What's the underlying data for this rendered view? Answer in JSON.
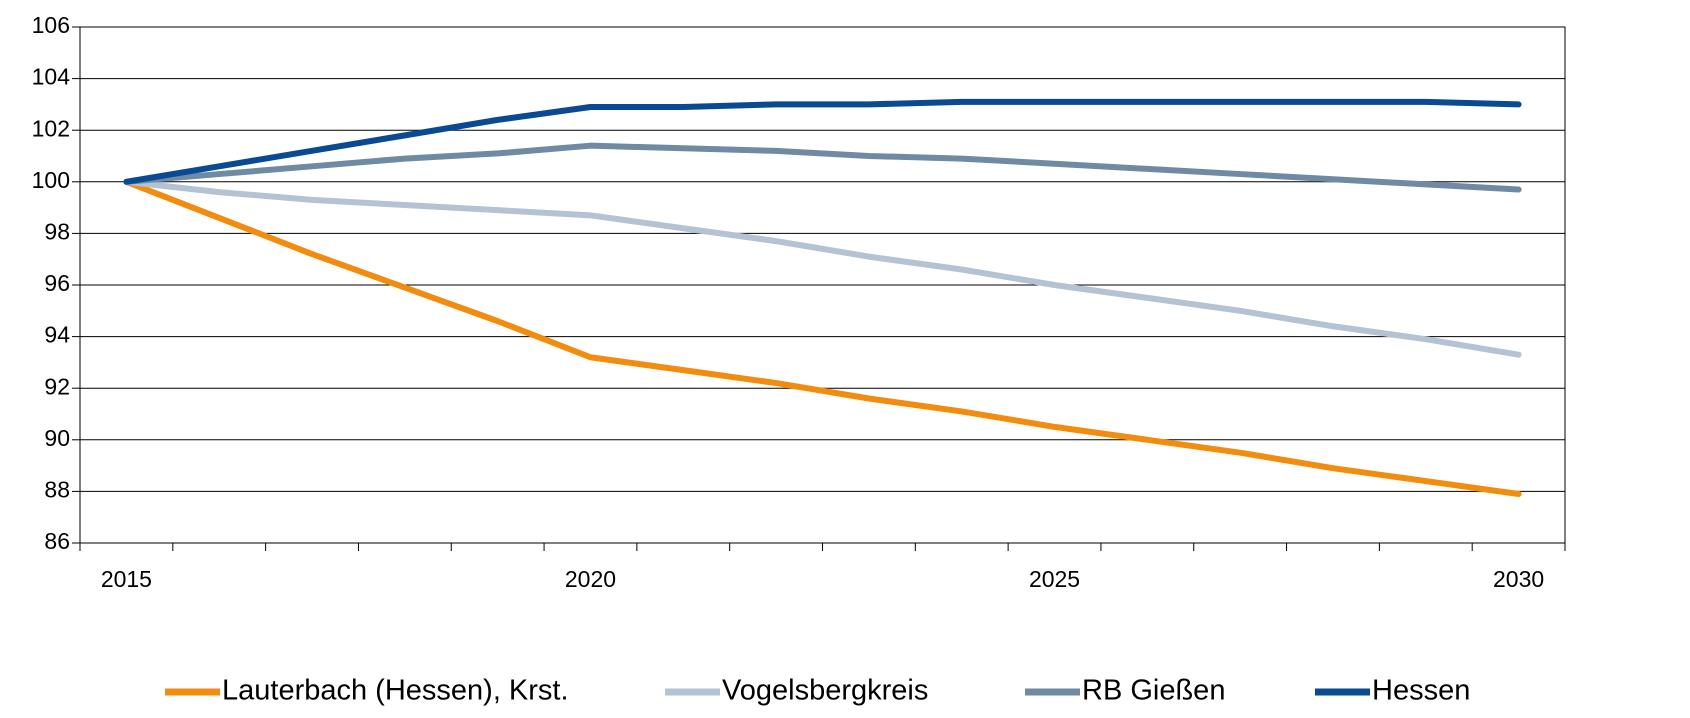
{
  "chart_data": {
    "type": "line",
    "categories": [
      "2015",
      null,
      null,
      null,
      null,
      "2020",
      null,
      null,
      null,
      null,
      "2025",
      null,
      null,
      null,
      null,
      "2030"
    ],
    "series": [
      {
        "name": "Lauterbach (Hessen), Krst.",
        "color": "#f28c0f",
        "values": [
          100,
          98.6,
          97.2,
          95.9,
          94.6,
          93.2,
          92.7,
          92.2,
          91.6,
          91.1,
          90.5,
          90.0,
          89.5,
          88.9,
          88.4,
          87.9
        ]
      },
      {
        "name": "Vogelsbergkreis",
        "color": "#b3c3d3",
        "values": [
          100,
          99.6,
          99.3,
          99.1,
          98.9,
          98.7,
          98.2,
          97.7,
          97.1,
          96.6,
          96.0,
          95.5,
          95.0,
          94.4,
          93.9,
          93.3
        ]
      },
      {
        "name": "RB Gießen",
        "color": "#6f8aa3",
        "values": [
          100,
          100.3,
          100.6,
          100.9,
          101.1,
          101.4,
          101.3,
          101.2,
          101.0,
          100.9,
          100.7,
          100.5,
          100.3,
          100.1,
          99.9,
          99.7
        ]
      },
      {
        "name": "Hessen",
        "color": "#0a4a93",
        "values": [
          100,
          100.6,
          101.2,
          101.8,
          102.4,
          102.9,
          102.9,
          103.0,
          103.0,
          103.1,
          103.1,
          103.1,
          103.1,
          103.1,
          103.1,
          103.0
        ]
      }
    ],
    "ylim": [
      86,
      106
    ],
    "yticks": [
      86,
      88,
      90,
      92,
      94,
      96,
      98,
      100,
      102,
      104,
      106
    ],
    "grid": true,
    "legend": "bottom"
  }
}
